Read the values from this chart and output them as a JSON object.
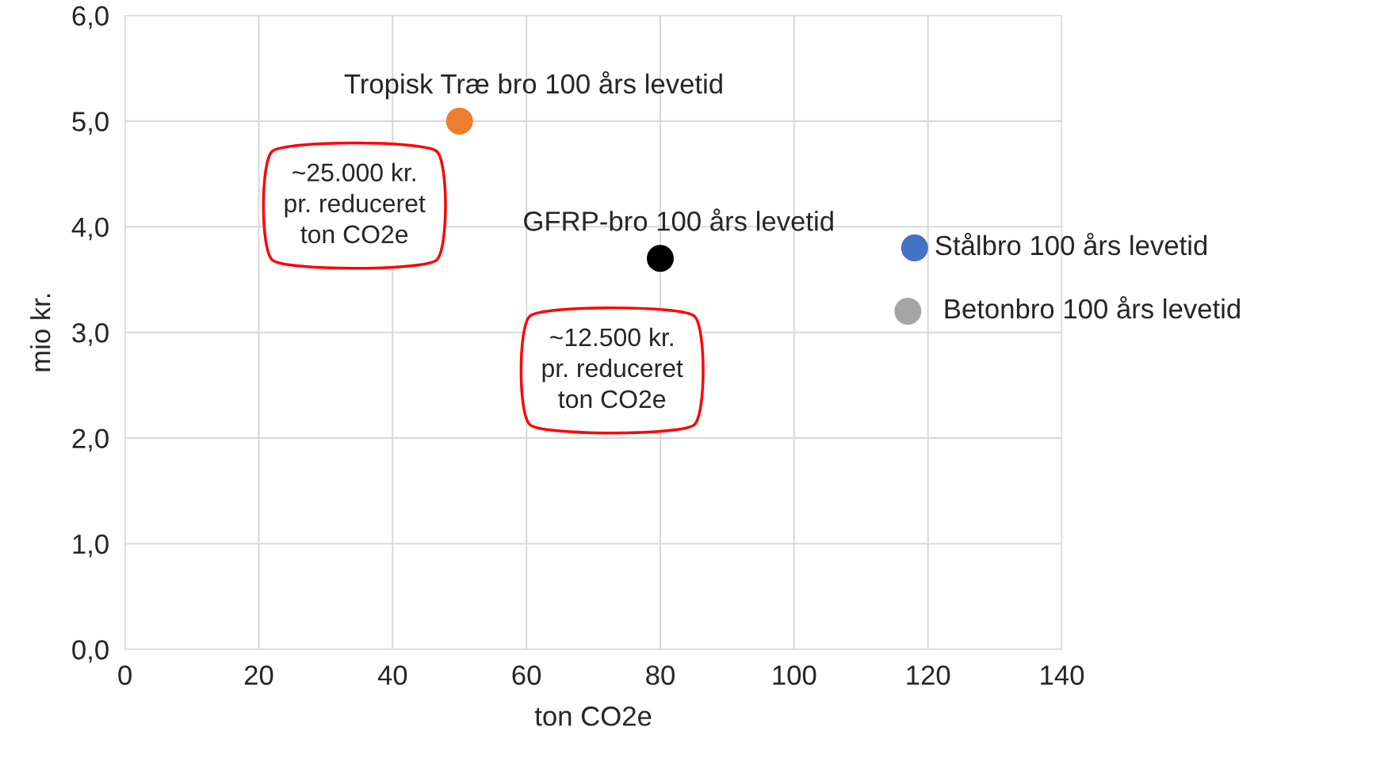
{
  "chart_data": {
    "type": "scatter",
    "xlabel": "ton CO2e",
    "ylabel": "mio kr.",
    "xlim": [
      0,
      140
    ],
    "xticks": [
      0,
      20,
      40,
      60,
      80,
      100,
      120,
      140
    ],
    "ylim": [
      0,
      6
    ],
    "yticks": [
      {
        "value": 0,
        "label": "0,0"
      },
      {
        "value": 1,
        "label": "1,0"
      },
      {
        "value": 2,
        "label": "2,0"
      },
      {
        "value": 3,
        "label": "3,0"
      },
      {
        "value": 4,
        "label": "4,0"
      },
      {
        "value": 5,
        "label": "5,0"
      },
      {
        "value": 6,
        "label": "6,0"
      }
    ],
    "grid": true,
    "marker": "circle",
    "series": [
      {
        "name": "Tropisk Træ bro 100 års levetid",
        "color": "#ed7d31",
        "x": [
          50
        ],
        "values": [
          5.0
        ]
      },
      {
        "name": "GFRP-bro 100 års levetid",
        "color": "#000000",
        "x": [
          80
        ],
        "values": [
          3.7
        ]
      },
      {
        "name": "Stålbro 100 års levetid",
        "color": "#4472c4",
        "x": [
          118
        ],
        "values": [
          3.8
        ]
      },
      {
        "name": "Betonbro 100 års levetid",
        "color": "#a5a5a5",
        "x": [
          117
        ],
        "values": [
          3.2
        ]
      }
    ],
    "annotations": [
      "~25.000 kr.\npr. reduceret\nton CO2e",
      "~12.500 kr.\npr. reduceret\nton CO2e"
    ]
  }
}
